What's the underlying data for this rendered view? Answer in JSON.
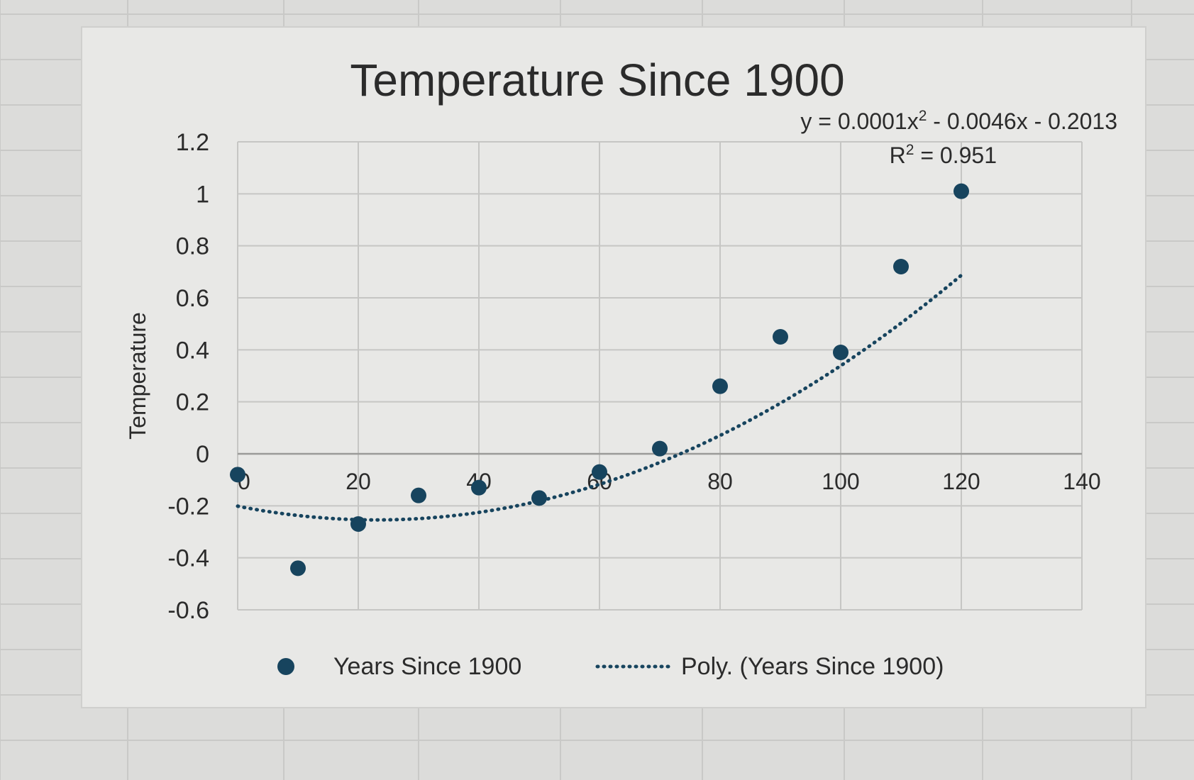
{
  "colors": {
    "background": "#dcdcda",
    "chart_area": "#e8e8e6",
    "grid": "#c6c6c4",
    "sheet_grid": "#c9c9c7",
    "marker": "#17445e",
    "text": "#2b2b2b"
  },
  "chart_data": {
    "type": "scatter",
    "title": "Temperature Since 1900",
    "xlabel": "",
    "ylabel": "Temperature",
    "xlim": [
      0,
      140
    ],
    "ylim": [
      -0.6,
      1.2
    ],
    "x_ticks": [
      0,
      20,
      40,
      60,
      80,
      100,
      120,
      140
    ],
    "y_ticks": [
      -0.6,
      -0.4,
      -0.2,
      0,
      0.2,
      0.4,
      0.6,
      0.8,
      1,
      1.2
    ],
    "x_tick_labels": [
      "0",
      "20",
      "40",
      "60",
      "80",
      "100",
      "120",
      "140"
    ],
    "y_tick_labels": [
      "-0.6",
      "-0.4",
      "-0.2",
      "0",
      "0.2",
      "0.4",
      "0.6",
      "0.8",
      "1",
      "1.2"
    ],
    "grid": true,
    "series": [
      {
        "name": "Years Since 1900",
        "marker": "circle",
        "x": [
          0,
          10,
          20,
          30,
          40,
          50,
          60,
          70,
          80,
          90,
          100,
          110,
          120
        ],
        "y": [
          -0.08,
          -0.44,
          -0.27,
          -0.16,
          -0.13,
          -0.17,
          -0.07,
          0.02,
          0.26,
          0.45,
          0.39,
          0.72,
          1.01
        ]
      }
    ],
    "trendline": {
      "name": "Poly. (Years Since 1900)",
      "type": "polynomial",
      "order": 2,
      "coefficients": [
        0.0001,
        -0.0046,
        -0.2013
      ],
      "x_range": [
        0,
        120
      ],
      "equation": "y = 0.0001x² - 0.0046x - 0.2013",
      "equation_parts": {
        "pre": "y = 0.0001x",
        "sup": "2",
        "post": " - 0.0046x - 0.2013"
      },
      "r_squared": "R² = 0.951",
      "r_squared_parts": {
        "pre": "R",
        "sup": "2",
        "post": " = 0.951"
      }
    },
    "legend": {
      "position": "bottom",
      "entries": [
        "Years Since 1900",
        "Poly. (Years Since 1900)"
      ]
    }
  }
}
